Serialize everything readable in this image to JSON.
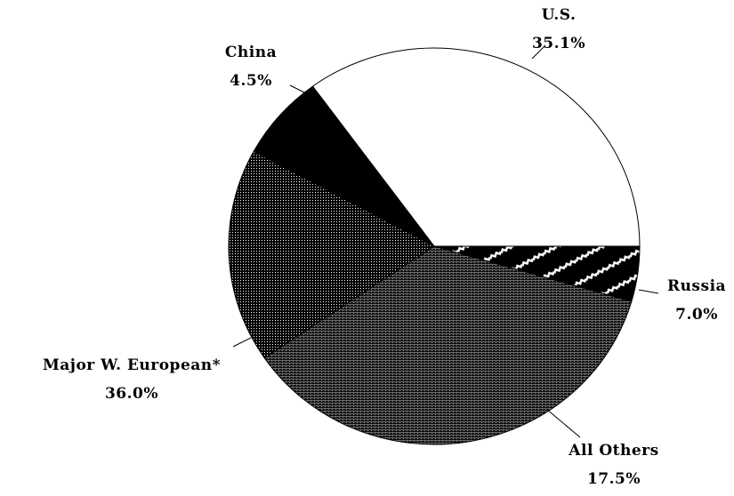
{
  "chart_data": {
    "type": "pie",
    "title": "",
    "legend": "none",
    "slices": [
      {
        "label": "U.S.",
        "value": 35.1,
        "value_label": "35.1%",
        "pattern": "white"
      },
      {
        "label": "Russia",
        "value": 7.0,
        "value_label": "7.0%",
        "pattern": "black"
      },
      {
        "label": "All Others",
        "value": 17.5,
        "value_label": "17.5%",
        "pattern": "dense-dots"
      },
      {
        "label": "Major W. European*",
        "value": 36.0,
        "value_label": "36.0%",
        "pattern": "dark-hatch"
      },
      {
        "label": "China",
        "value": 4.5,
        "value_label": "4.5%",
        "pattern": "black-white-zigzag"
      }
    ]
  }
}
